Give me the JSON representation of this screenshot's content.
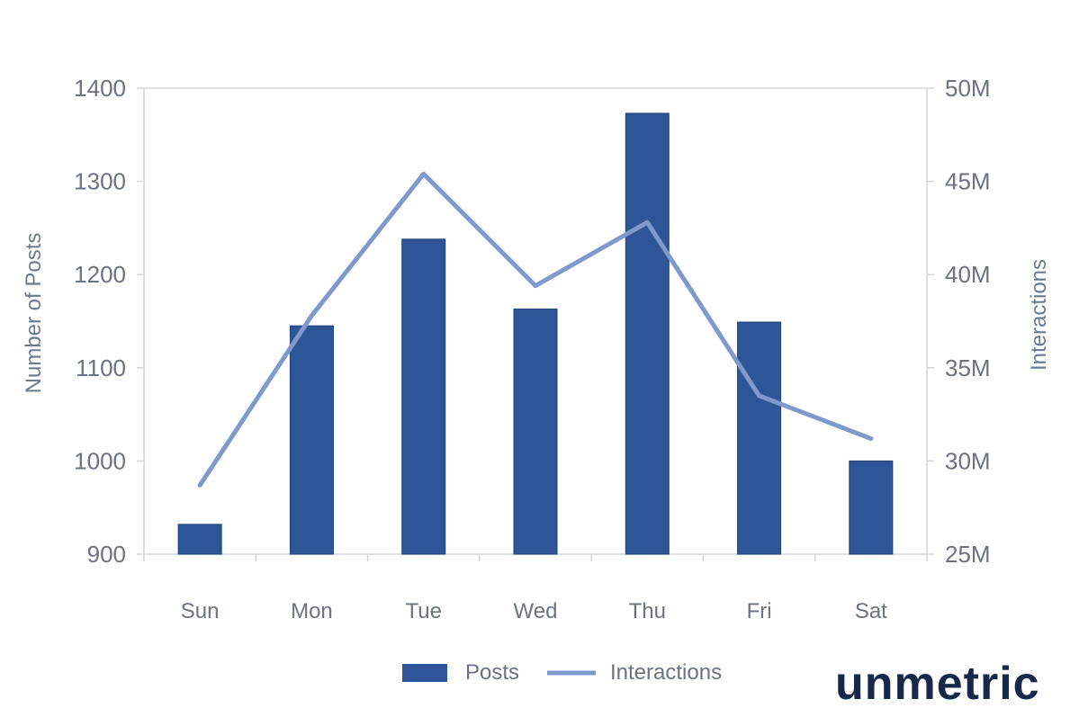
{
  "chart_data": {
    "type": "bar",
    "categories": [
      "Sun",
      "Mon",
      "Tue",
      "Wed",
      "Thu",
      "Fri",
      "Sat"
    ],
    "series": [
      {
        "name": "Posts",
        "type": "bar",
        "axis": "left",
        "color": "#2e5597",
        "values": [
          932,
          1145,
          1238,
          1163,
          1373,
          1149,
          1000
        ]
      },
      {
        "name": "Interactions",
        "type": "line",
        "axis": "right",
        "color": "#7f99cc",
        "values": [
          28.7,
          37.8,
          45.4,
          39.4,
          42.8,
          33.5,
          31.2
        ]
      }
    ],
    "y_left": {
      "label": "Number of Posts",
      "range": [
        900,
        1400
      ],
      "ticks": [
        "900",
        "1000",
        "1100",
        "1200",
        "1300",
        "1400"
      ]
    },
    "y_right": {
      "label": "Interactions",
      "range": [
        25,
        50
      ],
      "unit": "M",
      "ticks": [
        "25M",
        "30M",
        "35M",
        "40M",
        "45M",
        "50M"
      ]
    },
    "grid": false,
    "legend_position": "bottom"
  },
  "brand": "unmetric"
}
